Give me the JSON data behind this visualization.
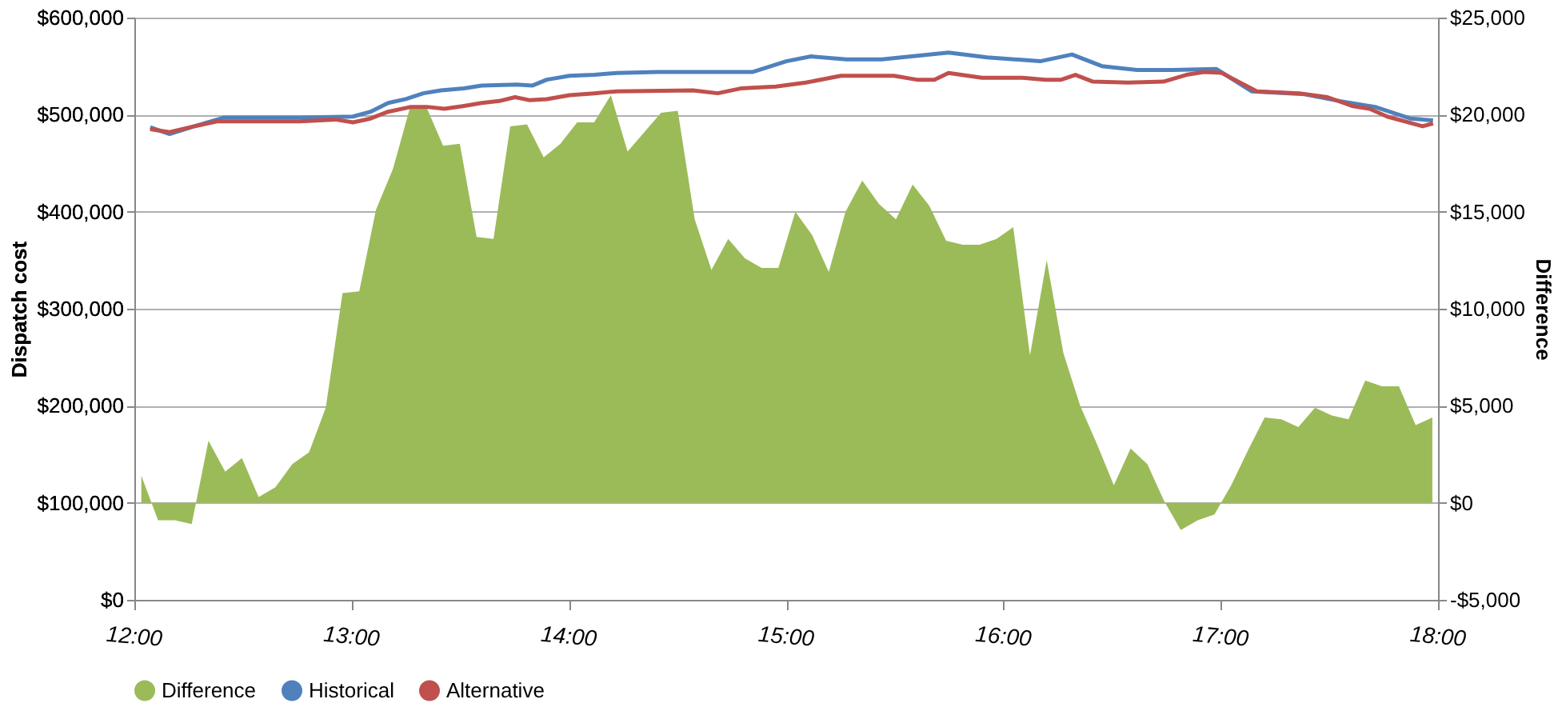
{
  "chart_data": {
    "type": "line",
    "xlabel": null,
    "ylabel": "Dispatch cost",
    "y2label": "Difference",
    "xlim": [
      12,
      18
    ],
    "xticks": [
      {
        "value": 12,
        "label": "12:00"
      },
      {
        "value": 13,
        "label": "13:00"
      },
      {
        "value": 14,
        "label": "14:00"
      },
      {
        "value": 15,
        "label": "15:00"
      },
      {
        "value": 16,
        "label": "16:00"
      },
      {
        "value": 17,
        "label": "17:00"
      },
      {
        "value": 18,
        "label": "18:00"
      }
    ],
    "ylim": [
      0,
      600000
    ],
    "yticks": [
      {
        "value": 0,
        "label": "$0"
      },
      {
        "value": 100000,
        "label": "$100,000"
      },
      {
        "value": 200000,
        "label": "$200,000"
      },
      {
        "value": 300000,
        "label": "$300,000"
      },
      {
        "value": 400000,
        "label": "$400,000"
      },
      {
        "value": 500000,
        "label": "$500,000"
      },
      {
        "value": 600000,
        "label": "$600,000"
      }
    ],
    "y2lim": [
      -5000,
      25000
    ],
    "y2ticks": [
      {
        "value": -5000,
        "label": "-$5,000"
      },
      {
        "value": 0,
        "label": "$0"
      },
      {
        "value": 5000,
        "label": "$5,000"
      },
      {
        "value": 10000,
        "label": "$10,000"
      },
      {
        "value": 15000,
        "label": "$15,000"
      },
      {
        "value": 20000,
        "label": "$20,000"
      },
      {
        "value": 25000,
        "label": "$25,000"
      }
    ],
    "grid": "y",
    "legend": "bottom",
    "series": [
      {
        "name": "Difference",
        "type": "area",
        "axis": "y2",
        "color": "#9bbb59",
        "x": [
          12.032,
          12.109,
          12.186,
          12.264,
          12.341,
          12.418,
          12.495,
          12.572,
          12.649,
          12.727,
          12.804,
          12.881,
          12.958,
          13.035,
          13.112,
          13.19,
          13.267,
          13.344,
          13.421,
          13.498,
          13.575,
          13.653,
          13.73,
          13.807,
          13.884,
          13.961,
          14.038,
          14.116,
          14.193,
          14.27,
          14.347,
          14.424,
          14.501,
          14.579,
          14.656,
          14.733,
          14.81,
          14.887,
          14.964,
          15.042,
          15.119,
          15.196,
          15.273,
          15.35,
          15.427,
          15.505,
          15.582,
          15.659,
          15.736,
          15.813,
          15.89,
          15.968,
          16.045,
          16.122,
          16.199,
          16.276,
          16.353,
          16.431,
          16.508,
          16.585,
          16.662,
          16.739,
          16.816,
          16.894,
          16.971,
          17.048,
          17.125,
          17.202,
          17.279,
          17.357,
          17.434,
          17.511,
          17.588,
          17.665,
          17.742,
          17.82,
          17.897,
          17.974
        ],
        "values": [
          1400,
          -900,
          -900,
          -1100,
          3200,
          1600,
          2300,
          300,
          800,
          2000,
          2600,
          4900,
          10800,
          10900,
          15100,
          17200,
          20300,
          20400,
          18400,
          18500,
          13700,
          13600,
          19400,
          19500,
          17800,
          18500,
          19600,
          19600,
          21000,
          18100,
          19100,
          20100,
          20200,
          14600,
          12000,
          13600,
          12600,
          12100,
          12100,
          15000,
          13800,
          11900,
          15000,
          16600,
          15400,
          14600,
          16400,
          15300,
          13500,
          13300,
          13300,
          13600,
          14200,
          7600,
          12500,
          7700,
          5000,
          3000,
          900,
          2800,
          2000,
          100,
          -1400,
          -900,
          -600,
          900,
          2700,
          4400,
          4300,
          3900,
          4900,
          4500,
          4300,
          6300,
          6000,
          6000,
          4000,
          4400
        ]
      },
      {
        "name": "Historical",
        "color": "#4f81bd",
        "x": [
          12.073,
          12.162,
          12.276,
          12.414,
          12.762,
          13.006,
          13.087,
          13.168,
          13.249,
          13.33,
          13.411,
          13.517,
          13.598,
          13.76,
          13.833,
          13.898,
          14.003,
          14.117,
          14.222,
          14.409,
          14.733,
          14.847,
          15.0,
          15.114,
          15.277,
          15.44,
          15.747,
          15.925,
          16.169,
          16.315,
          16.453,
          16.615,
          16.777,
          16.98,
          17.142,
          17.385,
          17.547,
          17.71,
          17.872,
          17.977
        ],
        "values": [
          487000,
          480000,
          488000,
          497000,
          497000,
          498000,
          503000,
          512000,
          516000,
          522000,
          525000,
          527000,
          530000,
          531000,
          530000,
          536000,
          540000,
          541000,
          543000,
          544000,
          544000,
          544000,
          555000,
          560000,
          557000,
          557000,
          564000,
          559000,
          555000,
          562000,
          550000,
          546000,
          546000,
          547000,
          524000,
          521000,
          514000,
          508000,
          496000,
          494000
        ]
      },
      {
        "name": "Alternative",
        "color": "#c0504d",
        "x": [
          12.073,
          12.162,
          12.276,
          12.381,
          12.762,
          12.925,
          13.006,
          13.087,
          13.168,
          13.273,
          13.346,
          13.427,
          13.517,
          13.598,
          13.679,
          13.752,
          13.817,
          13.898,
          14.003,
          14.117,
          14.222,
          14.571,
          14.685,
          14.79,
          14.952,
          15.09,
          15.252,
          15.496,
          15.601,
          15.682,
          15.747,
          15.901,
          16.088,
          16.193,
          16.266,
          16.331,
          16.412,
          16.574,
          16.736,
          16.842,
          16.923,
          17.004,
          17.166,
          17.361,
          17.491,
          17.604,
          17.685,
          17.766,
          17.929,
          17.977
        ],
        "values": [
          485000,
          482000,
          488000,
          493000,
          493000,
          495000,
          492000,
          496000,
          503000,
          508000,
          508000,
          506000,
          509000,
          512000,
          514000,
          518000,
          515000,
          516000,
          520000,
          522000,
          524000,
          525000,
          522000,
          527000,
          529000,
          533000,
          540000,
          540000,
          536000,
          536000,
          543000,
          538000,
          538000,
          536000,
          536000,
          541000,
          534000,
          533000,
          534000,
          541000,
          544000,
          543000,
          524000,
          522000,
          518000,
          509000,
          506000,
          498000,
          488000,
          491000
        ]
      }
    ]
  }
}
